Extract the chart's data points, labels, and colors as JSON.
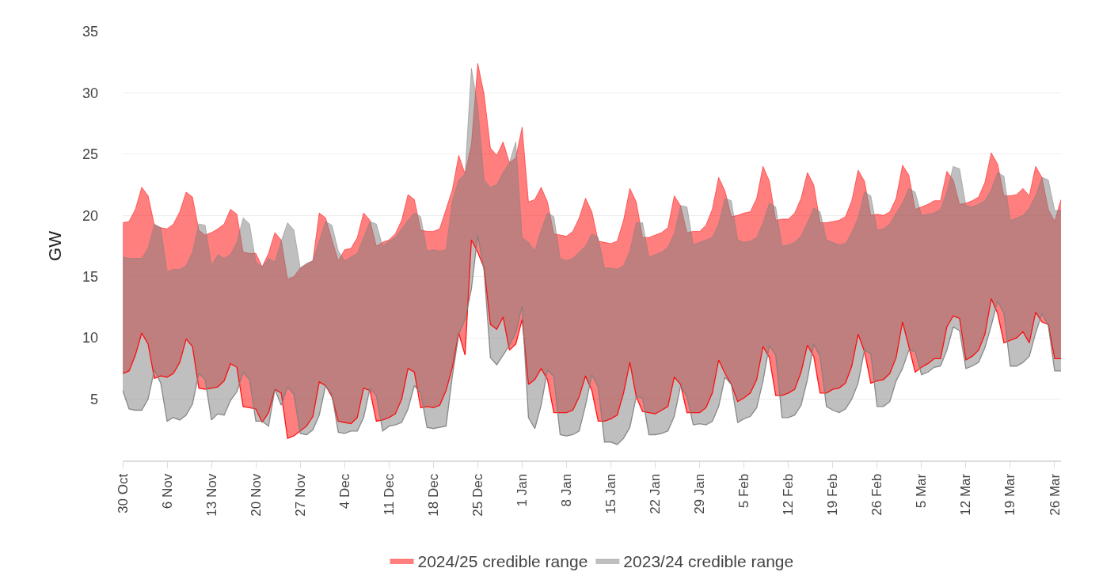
{
  "chart_data": {
    "type": "area",
    "ylabel": "GW",
    "ylim": [
      0,
      35
    ],
    "yticks": [
      5,
      10,
      15,
      20,
      25,
      30,
      35
    ],
    "grid": "y",
    "legend": "bottom",
    "xlim": [
      "2024-10-30",
      "2025-03-27"
    ],
    "xticks": [
      {
        "value": "2024-10-30",
        "label": "30 Oct"
      },
      {
        "value": "2024-11-06",
        "label": "6 Nov"
      },
      {
        "value": "2024-11-13",
        "label": "13 Nov"
      },
      {
        "value": "2024-11-20",
        "label": "20 Nov"
      },
      {
        "value": "2024-11-27",
        "label": "27 Nov"
      },
      {
        "value": "2024-12-04",
        "label": "4 Dec"
      },
      {
        "value": "2024-12-11",
        "label": "11 Dec"
      },
      {
        "value": "2024-12-18",
        "label": "18 Dec"
      },
      {
        "value": "2024-12-25",
        "label": "25 Dec"
      },
      {
        "value": "2025-01-01",
        "label": "1 Jan"
      },
      {
        "value": "2025-01-08",
        "label": "8 Jan"
      },
      {
        "value": "2025-01-15",
        "label": "15 Jan"
      },
      {
        "value": "2025-01-22",
        "label": "22 Jan"
      },
      {
        "value": "2025-01-29",
        "label": "29 Jan"
      },
      {
        "value": "2025-02-05",
        "label": "5 Feb"
      },
      {
        "value": "2025-02-12",
        "label": "12 Feb"
      },
      {
        "value": "2025-02-19",
        "label": "19 Feb"
      },
      {
        "value": "2025-02-26",
        "label": "26 Feb"
      },
      {
        "value": "2025-03-05",
        "label": "5 Mar"
      },
      {
        "value": "2025-03-12",
        "label": "12 Mar"
      },
      {
        "value": "2025-03-19",
        "label": "19 Mar"
      },
      {
        "value": "2025-03-26",
        "label": "26 Mar"
      }
    ],
    "x": [
      "2024-10-30",
      "2024-10-31",
      "2024-11-01",
      "2024-11-02",
      "2024-11-03",
      "2024-11-04",
      "2024-11-05",
      "2024-11-06",
      "2024-11-07",
      "2024-11-08",
      "2024-11-09",
      "2024-11-10",
      "2024-11-11",
      "2024-11-12",
      "2024-11-13",
      "2024-11-14",
      "2024-11-15",
      "2024-11-16",
      "2024-11-17",
      "2024-11-18",
      "2024-11-19",
      "2024-11-20",
      "2024-11-21",
      "2024-11-22",
      "2024-11-23",
      "2024-11-24",
      "2024-11-25",
      "2024-11-26",
      "2024-11-27",
      "2024-11-28",
      "2024-11-29",
      "2024-11-30",
      "2024-12-01",
      "2024-12-02",
      "2024-12-03",
      "2024-12-04",
      "2024-12-05",
      "2024-12-06",
      "2024-12-07",
      "2024-12-08",
      "2024-12-09",
      "2024-12-10",
      "2024-12-11",
      "2024-12-12",
      "2024-12-13",
      "2024-12-14",
      "2024-12-15",
      "2024-12-16",
      "2024-12-17",
      "2024-12-18",
      "2024-12-19",
      "2024-12-20",
      "2024-12-21",
      "2024-12-22",
      "2024-12-23",
      "2024-12-24",
      "2024-12-25",
      "2024-12-26",
      "2024-12-27",
      "2024-12-28",
      "2024-12-29",
      "2024-12-30",
      "2024-12-31",
      "2025-01-01",
      "2025-01-02",
      "2025-01-03",
      "2025-01-04",
      "2025-01-05",
      "2025-01-06",
      "2025-01-07",
      "2025-01-08",
      "2025-01-09",
      "2025-01-10",
      "2025-01-11",
      "2025-01-12",
      "2025-01-13",
      "2025-01-14",
      "2025-01-15",
      "2025-01-16",
      "2025-01-17",
      "2025-01-18",
      "2025-01-19",
      "2025-01-20",
      "2025-01-21",
      "2025-01-22",
      "2025-01-23",
      "2025-01-24",
      "2025-01-25",
      "2025-01-26",
      "2025-01-27",
      "2025-01-28",
      "2025-01-29",
      "2025-01-30",
      "2025-01-31",
      "2025-02-01",
      "2025-02-02",
      "2025-02-03",
      "2025-02-04",
      "2025-02-05",
      "2025-02-06",
      "2025-02-07",
      "2025-02-08",
      "2025-02-09",
      "2025-02-10",
      "2025-02-11",
      "2025-02-12",
      "2025-02-13",
      "2025-02-14",
      "2025-02-15",
      "2025-02-16",
      "2025-02-17",
      "2025-02-18",
      "2025-02-19",
      "2025-02-20",
      "2025-02-21",
      "2025-02-22",
      "2025-02-23",
      "2025-02-24",
      "2025-02-25",
      "2025-02-26",
      "2025-02-27",
      "2025-02-28",
      "2025-03-01",
      "2025-03-02",
      "2025-03-03",
      "2025-03-04",
      "2025-03-05",
      "2025-03-06",
      "2025-03-07",
      "2025-03-08",
      "2025-03-09",
      "2025-03-10",
      "2025-03-11",
      "2025-03-12",
      "2025-03-13",
      "2025-03-14",
      "2025-03-15",
      "2025-03-16",
      "2025-03-17",
      "2025-03-18",
      "2025-03-19",
      "2025-03-20",
      "2025-03-21",
      "2025-03-22",
      "2025-03-23",
      "2025-03-24",
      "2025-03-25",
      "2025-03-26",
      "2025-03-27"
    ],
    "series": [
      {
        "name": "2024/25 credible range",
        "color": "#ff0000",
        "values": [
          19.4,
          19.5,
          20.5,
          22.3,
          21.6,
          19.2,
          19.0,
          18.9,
          19.3,
          20.3,
          21.9,
          21.5,
          18.8,
          18.4,
          18.6,
          18.9,
          19.3,
          20.5,
          20.1,
          17.0,
          16.9,
          16.9,
          15.8,
          16.9,
          18.6,
          18.0,
          14.8,
          15.0,
          15.7,
          16.0,
          16.3,
          20.2,
          19.8,
          18.0,
          16.3,
          17.2,
          17.3,
          18.2,
          20.2,
          19.6,
          17.5,
          17.8,
          18.0,
          18.5,
          19.6,
          21.7,
          21.3,
          18.8,
          18.7,
          18.7,
          18.9,
          20.5,
          22.1,
          24.9,
          23.4,
          25.8,
          32.4,
          29.9,
          25.5,
          24.9,
          26.0,
          24.3,
          24.7,
          27.2,
          21.1,
          21.3,
          22.3,
          21.1,
          18.5,
          18.4,
          18.3,
          18.7,
          19.8,
          21.4,
          20.3,
          17.9,
          17.8,
          17.7,
          17.9,
          19.6,
          22.2,
          21.1,
          18.2,
          18.2,
          18.4,
          18.6,
          19.0,
          21.6,
          20.8,
          18.6,
          18.7,
          18.7,
          19.2,
          20.5,
          23.1,
          22.0,
          19.9,
          20.0,
          20.2,
          20.3,
          21.4,
          24.0,
          22.8,
          19.6,
          19.7,
          19.7,
          20.2,
          21.4,
          23.5,
          22.5,
          19.4,
          19.4,
          19.5,
          19.6,
          19.9,
          21.2,
          23.7,
          22.8,
          20.0,
          20.1,
          20.0,
          20.3,
          21.4,
          24.1,
          23.3,
          20.5,
          20.7,
          20.9,
          21.2,
          21.2,
          23.6,
          22.9,
          20.9,
          21.0,
          21.2,
          21.5,
          22.7,
          25.1,
          24.2,
          21.6,
          21.6,
          21.7,
          22.2,
          21.6,
          24.0,
          23.1,
          20.5,
          19.5,
          21.3
        ]
      },
      {
        "type": "line",
        "color": "#ff0000",
        "values": [
          7.1,
          7.3,
          8.6,
          10.4,
          9.5,
          6.7,
          6.9,
          6.8,
          7.1,
          8.0,
          9.9,
          9.3,
          5.9,
          5.8,
          5.9,
          6.0,
          6.5,
          7.9,
          7.6,
          4.4,
          4.3,
          4.2,
          3.1,
          3.9,
          5.8,
          5.5,
          1.8,
          2.0,
          2.4,
          2.8,
          3.6,
          6.4,
          6.1,
          5.2,
          3.2,
          3.1,
          3.0,
          3.5,
          5.9,
          5.7,
          3.2,
          3.3,
          3.5,
          3.8,
          5.0,
          7.5,
          7.2,
          4.3,
          4.4,
          4.3,
          4.5,
          5.7,
          7.6,
          10.4,
          8.6,
          18.0,
          17.0,
          15.7,
          11.1,
          10.7,
          11.7,
          9.0,
          9.5,
          11.5,
          6.2,
          6.6,
          7.5,
          6.6,
          3.9,
          3.9,
          3.9,
          4.1,
          5.2,
          6.9,
          5.7,
          3.2,
          3.2,
          3.4,
          3.7,
          5.5,
          8.0,
          5.2,
          4.0,
          3.9,
          3.8,
          4.1,
          4.4,
          6.8,
          6.2,
          3.9,
          3.9,
          3.9,
          4.3,
          5.5,
          8.2,
          7.1,
          6.2,
          4.8,
          5.1,
          5.5,
          6.6,
          9.3,
          8.4,
          5.3,
          5.3,
          5.5,
          5.8,
          7.2,
          9.4,
          8.5,
          5.5,
          5.5,
          5.8,
          5.9,
          6.3,
          7.7,
          10.3,
          8.9,
          6.3,
          6.5,
          6.6,
          7.1,
          8.4,
          11.3,
          9.3,
          7.2,
          7.6,
          7.9,
          8.3,
          8.3,
          10.9,
          11.8,
          11.6,
          8.2,
          8.5,
          9.0,
          10.3,
          13.2,
          12.0,
          9.6,
          9.8,
          10.0,
          10.5,
          9.6,
          12.1,
          11.3,
          11.1,
          8.3,
          8.3
        ]
      },
      {
        "name": "2023/24 credible range",
        "color": "#7f7f7f",
        "values": [
          16.6,
          16.5,
          16.5,
          16.5,
          17.3,
          19.3,
          19.0,
          15.4,
          15.6,
          15.6,
          15.9,
          17.0,
          19.3,
          19.2,
          15.9,
          16.8,
          16.5,
          16.8,
          17.8,
          19.8,
          19.3,
          16.2,
          15.8,
          16.5,
          16.2,
          17.9,
          19.4,
          18.8,
          15.7,
          16.1,
          16.3,
          17.9,
          19.5,
          19.2,
          17.1,
          16.3,
          16.6,
          16.9,
          18.2,
          19.5,
          19.3,
          17.5,
          17.9,
          18.2,
          18.9,
          19.6,
          20.2,
          19.9,
          17.1,
          17.2,
          17.1,
          17.2,
          21.2,
          22.9,
          23.4,
          32.0,
          28.9,
          22.9,
          22.3,
          22.5,
          23.5,
          24.3,
          26.0,
          18.2,
          17.8,
          17.1,
          18.8,
          20.2,
          19.9,
          16.5,
          16.3,
          16.5,
          17.0,
          17.5,
          18.5,
          18.2,
          15.7,
          15.7,
          15.6,
          15.9,
          17.1,
          19.4,
          19.4,
          16.6,
          16.8,
          17.0,
          17.4,
          18.5,
          20.8,
          20.7,
          17.6,
          17.8,
          18.0,
          18.2,
          19.3,
          21.4,
          21.2,
          18.0,
          17.8,
          17.9,
          18.2,
          19.4,
          21.0,
          20.7,
          17.5,
          17.6,
          17.8,
          18.3,
          19.4,
          20.6,
          20.3,
          18.0,
          17.8,
          17.6,
          17.7,
          18.6,
          19.8,
          21.9,
          21.6,
          18.8,
          18.9,
          19.3,
          20.2,
          21.0,
          22.2,
          21.9,
          20.0,
          20.1,
          20.2,
          20.5,
          21.9,
          24.0,
          23.8,
          20.8,
          20.7,
          20.9,
          21.2,
          22.1,
          23.5,
          23.2,
          19.6,
          19.8,
          20.0,
          20.6,
          21.6,
          23.1,
          22.9,
          20.4,
          20.4
        ]
      },
      {
        "type": "line",
        "color": "#7f7f7f",
        "values": [
          5.7,
          4.2,
          4.1,
          4.1,
          5.0,
          7.4,
          6.3,
          3.2,
          3.5,
          3.3,
          3.7,
          4.6,
          7.1,
          6.6,
          3.3,
          3.8,
          3.7,
          4.9,
          5.6,
          7.2,
          6.6,
          3.2,
          3.2,
          2.8,
          5.8,
          4.5,
          6.0,
          5.4,
          2.2,
          2.1,
          2.5,
          3.7,
          6.1,
          5.4,
          2.3,
          2.2,
          2.4,
          2.4,
          3.5,
          5.9,
          5.3,
          2.4,
          2.8,
          2.9,
          3.1,
          4.2,
          6.1,
          5.5,
          2.7,
          2.6,
          2.7,
          2.8,
          6.9,
          10.3,
          11.5,
          14.0,
          18.4,
          15.5,
          8.4,
          7.8,
          8.6,
          9.4,
          10.4,
          12.6,
          3.5,
          2.6,
          4.5,
          7.4,
          6.8,
          2.1,
          2.0,
          2.1,
          2.4,
          4.5,
          7.0,
          6.0,
          1.5,
          1.5,
          1.3,
          1.8,
          2.7,
          5.2,
          5.1,
          2.1,
          2.1,
          2.2,
          2.4,
          3.6,
          6.1,
          5.2,
          2.9,
          3.0,
          2.9,
          3.2,
          4.4,
          6.8,
          6.2,
          3.1,
          3.4,
          3.6,
          4.3,
          6.5,
          9.4,
          8.6,
          3.5,
          3.5,
          3.7,
          4.5,
          6.6,
          9.5,
          8.5,
          4.4,
          4.1,
          3.9,
          4.2,
          5.0,
          6.3,
          9.0,
          8.7,
          4.4,
          4.4,
          4.8,
          6.5,
          7.5,
          9.0,
          8.9,
          7.0,
          7.2,
          7.6,
          7.7,
          9.0,
          10.9,
          10.6,
          7.5,
          7.7,
          8.0,
          9.2,
          11.0,
          13.0,
          12.0,
          7.7,
          7.7,
          8.0,
          8.5,
          10.4,
          12.0,
          11.0,
          7.3,
          7.3
        ]
      }
    ]
  }
}
